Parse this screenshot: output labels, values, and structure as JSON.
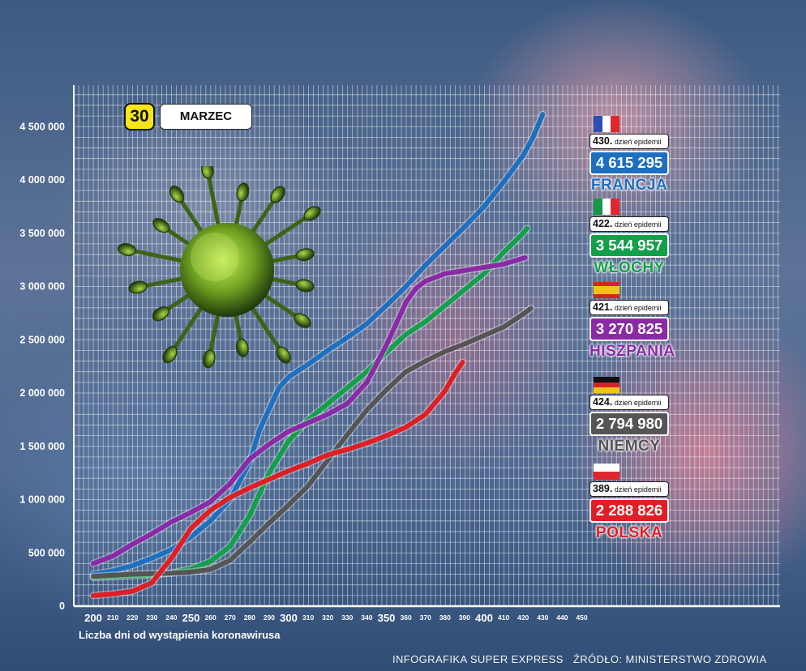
{
  "date": {
    "day": "30",
    "month": "MARZEC"
  },
  "footer": {
    "credit": "INFOGRAFIKA SUPER EXPRESS",
    "source": "ŹRÓDŁO: MINISTERSTWO ZDROWIA"
  },
  "countries": [
    {
      "name": "FRANCJA",
      "day": "430.",
      "day_label": "dzień epidemii",
      "value": "4 615 295",
      "color": "#1e6fc0",
      "flag": "fr"
    },
    {
      "name": "WŁOCHY",
      "day": "422.",
      "day_label": "dzień epidemii",
      "value": "3 544 957",
      "color": "#13a04a",
      "flag": "it"
    },
    {
      "name": "HISZPANIA",
      "day": "421.",
      "day_label": "dzień epidemii",
      "value": "3 270 825",
      "color": "#8a2aa6",
      "flag": "es"
    },
    {
      "name": "NIEMCY",
      "day": "424.",
      "day_label": "dzień epidemii",
      "value": "2 794 980",
      "color": "#555555",
      "flag": "de"
    },
    {
      "name": "POLSKA",
      "day": "389.",
      "day_label": "dzień epidemii",
      "value": "2 288 826",
      "color": "#e01e25",
      "flag": "pl"
    }
  ],
  "chart_data": {
    "type": "line",
    "xlabel": "Liczba dni od wystąpienia koronawirusa",
    "ylabel": "",
    "xlim": [
      200,
      460
    ],
    "ylim": [
      0,
      4500000
    ],
    "x_ticks": [
      200,
      210,
      220,
      230,
      240,
      250,
      260,
      270,
      280,
      290,
      300,
      310,
      320,
      330,
      340,
      350,
      360,
      370,
      380,
      390,
      400,
      410,
      420,
      430,
      440,
      450
    ],
    "x_tick_labels": [
      "200",
      "210",
      "220",
      "230",
      "240",
      "250",
      "260",
      "270",
      "280",
      "290",
      "300",
      "310",
      "320",
      "330",
      "340",
      "350",
      "360",
      "370",
      "380",
      "390",
      "400",
      "410",
      "420",
      "430",
      "440",
      "450"
    ],
    "x_major_ticks": [
      250,
      300,
      350,
      400
    ],
    "y_ticks": [
      0,
      500000,
      1000000,
      1500000,
      2000000,
      2500000,
      3000000,
      3500000,
      4000000,
      4500000
    ],
    "y_tick_labels": [
      "0",
      "500 000",
      "1 000 000",
      "1 500 000",
      "2 000 000",
      "2 500 000",
      "3 000 000",
      "3 500 000",
      "4 000 000",
      "4 500 000"
    ],
    "grid": true,
    "series": [
      {
        "name": "FRANCJA",
        "color": "#1e6fc0",
        "x": [
          200,
          210,
          220,
          230,
          240,
          250,
          260,
          270,
          280,
          285,
          290,
          295,
          300,
          310,
          320,
          330,
          340,
          350,
          360,
          370,
          380,
          390,
          400,
          410,
          420,
          425,
          430
        ],
        "y": [
          300000,
          330000,
          380000,
          450000,
          530000,
          650000,
          800000,
          1000000,
          1350000,
          1650000,
          1850000,
          2050000,
          2150000,
          2270000,
          2400000,
          2520000,
          2650000,
          2820000,
          3000000,
          3200000,
          3380000,
          3560000,
          3750000,
          3980000,
          4230000,
          4400000,
          4615295
        ]
      },
      {
        "name": "WŁOCHY",
        "color": "#13a04a",
        "x": [
          200,
          210,
          220,
          230,
          240,
          250,
          260,
          270,
          280,
          290,
          300,
          310,
          320,
          330,
          340,
          350,
          360,
          370,
          380,
          390,
          400,
          410,
          420,
          422
        ],
        "y": [
          270000,
          275000,
          285000,
          295000,
          310000,
          350000,
          420000,
          560000,
          850000,
          1250000,
          1550000,
          1750000,
          1900000,
          2050000,
          2200000,
          2380000,
          2550000,
          2670000,
          2820000,
          2970000,
          3120000,
          3320000,
          3500000,
          3544957
        ]
      },
      {
        "name": "HISZPANIA",
        "color": "#8a2aa6",
        "x": [
          200,
          210,
          220,
          230,
          240,
          250,
          260,
          270,
          280,
          290,
          300,
          310,
          320,
          330,
          340,
          350,
          355,
          360,
          365,
          370,
          380,
          390,
          400,
          410,
          421
        ],
        "y": [
          400000,
          470000,
          580000,
          680000,
          790000,
          880000,
          980000,
          1150000,
          1380000,
          1520000,
          1640000,
          1720000,
          1800000,
          1900000,
          2100000,
          2450000,
          2650000,
          2850000,
          2980000,
          3050000,
          3120000,
          3150000,
          3180000,
          3210000,
          3270825
        ]
      },
      {
        "name": "NIEMCY",
        "color": "#555555",
        "x": [
          200,
          210,
          220,
          230,
          240,
          250,
          260,
          270,
          280,
          290,
          300,
          310,
          320,
          330,
          340,
          350,
          360,
          370,
          380,
          390,
          400,
          410,
          420,
          424
        ],
        "y": [
          280000,
          290000,
          300000,
          305000,
          310000,
          320000,
          345000,
          430000,
          600000,
          780000,
          950000,
          1130000,
          1370000,
          1610000,
          1840000,
          2030000,
          2200000,
          2300000,
          2390000,
          2460000,
          2540000,
          2620000,
          2740000,
          2794980
        ]
      },
      {
        "name": "POLSKA",
        "color": "#e01e25",
        "x": [
          200,
          210,
          220,
          230,
          240,
          250,
          260,
          270,
          280,
          290,
          300,
          310,
          320,
          330,
          340,
          350,
          360,
          370,
          380,
          385,
          389
        ],
        "y": [
          100000,
          115000,
          140000,
          220000,
          450000,
          730000,
          900000,
          1020000,
          1110000,
          1190000,
          1270000,
          1340000,
          1420000,
          1470000,
          1530000,
          1600000,
          1680000,
          1800000,
          2020000,
          2180000,
          2288826
        ]
      }
    ]
  }
}
